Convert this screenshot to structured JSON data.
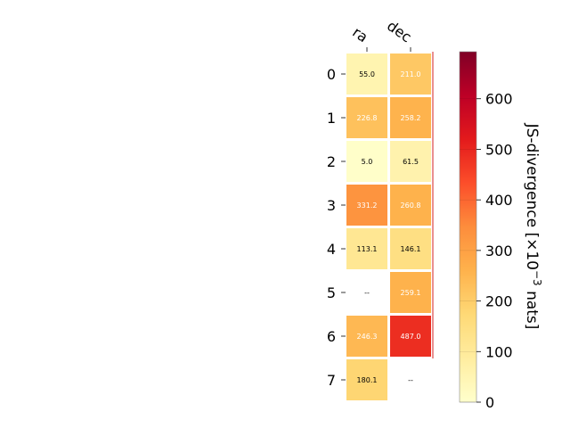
{
  "chart_data": {
    "type": "heatmap",
    "columns": [
      "ra",
      "dec"
    ],
    "rows": [
      "0",
      "1",
      "2",
      "3",
      "4",
      "5",
      "6",
      "7"
    ],
    "values": [
      [
        55.0,
        211.0
      ],
      [
        226.8,
        258.2
      ],
      [
        5.0,
        61.5
      ],
      [
        331.2,
        260.8
      ],
      [
        113.1,
        146.1
      ],
      [
        null,
        259.1
      ],
      [
        246.3,
        487.0
      ],
      [
        180.1,
        null
      ]
    ],
    "missing_label": "--",
    "colorbar": {
      "label": "JS-divergence [×10",
      "label_exponent": "−3",
      "label_suffix": " nats]",
      "range": [
        0,
        693
      ],
      "ticks": [
        0,
        100,
        200,
        300,
        400,
        500,
        600
      ],
      "colormap": "YlOrRd"
    }
  }
}
